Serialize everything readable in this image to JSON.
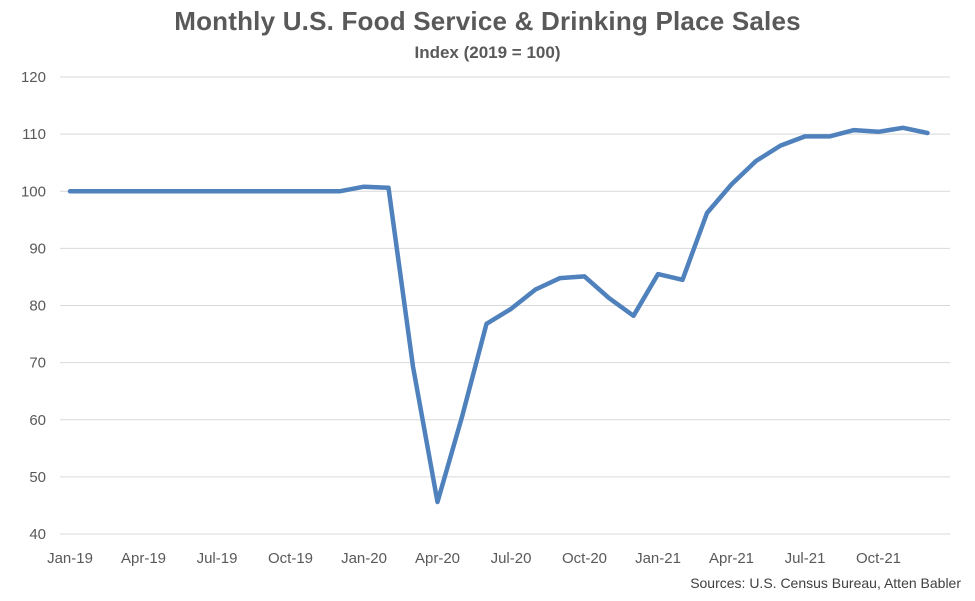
{
  "chart_data": {
    "type": "line",
    "title": "Monthly U.S. Food Service & Drinking Place Sales",
    "subtitle": "Index (2019 = 100)",
    "source": "Sources: U.S. Census Bureau, Atten Babler",
    "xlabel": "",
    "ylabel": "",
    "ylim": [
      40,
      120
    ],
    "y_ticks": [
      40,
      50,
      60,
      70,
      80,
      90,
      100,
      110,
      120
    ],
    "x_tick_labels": [
      "Jan-19",
      "Apr-19",
      "Jul-19",
      "Oct-19",
      "Jan-20",
      "Apr-20",
      "Jul-20",
      "Oct-20",
      "Jan-21",
      "Apr-21",
      "Jul-21",
      "Oct-21"
    ],
    "x_tick_months": [
      "2019-01",
      "2019-04",
      "2019-07",
      "2019-10",
      "2020-01",
      "2020-04",
      "2020-07",
      "2020-10",
      "2021-01",
      "2021-04",
      "2021-07",
      "2021-10"
    ],
    "grid": true,
    "line_color": "#4F81BD",
    "grid_color": "#D9D9D9",
    "series": [
      {
        "x": [
          "2019-01",
          "2019-02",
          "2019-03",
          "2019-04",
          "2019-05",
          "2019-06",
          "2019-07",
          "2019-08",
          "2019-09",
          "2019-10",
          "2019-11",
          "2019-12",
          "2020-01",
          "2020-02",
          "2020-03",
          "2020-04",
          "2020-05",
          "2020-06",
          "2020-07",
          "2020-08",
          "2020-09",
          "2020-10",
          "2020-11",
          "2020-12",
          "2021-01",
          "2021-02",
          "2021-03",
          "2021-04",
          "2021-05",
          "2021-06",
          "2021-07",
          "2021-08",
          "2021-09",
          "2021-10",
          "2021-11",
          "2021-12"
        ],
        "values": [
          100,
          100,
          100,
          100,
          100,
          100,
          100,
          100,
          100,
          100,
          100,
          100,
          100.8,
          100.6,
          69.3,
          45.6,
          60.5,
          76.8,
          79.4,
          82.8,
          84.8,
          85.1,
          81.3,
          78.2,
          85.5,
          84.5,
          96.2,
          101.2,
          105.3,
          108.0,
          109.6,
          109.6,
          110.7,
          110.4,
          111.1,
          110.2
        ]
      }
    ]
  }
}
